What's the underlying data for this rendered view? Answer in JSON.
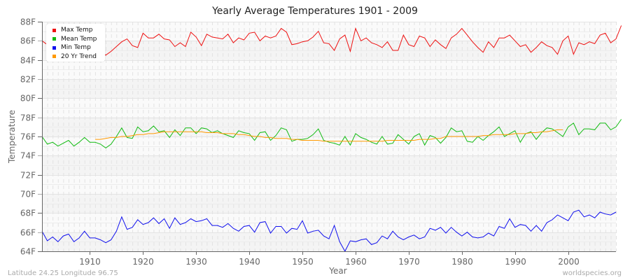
{
  "title": "Yearly Average Temperatures 1901 - 2009",
  "footer": {
    "location": "Latitude 24.25 Longitude 96.75",
    "source": "worldspecies.org"
  },
  "legend": [
    {
      "label": "Max Temp",
      "color": "#ee1111"
    },
    {
      "label": "Mean Temp",
      "color": "#11bb11"
    },
    {
      "label": "Min Temp",
      "color": "#1111ee"
    },
    {
      "label": "20 Yr Trend",
      "color": "#ff9900"
    }
  ],
  "chart_data": {
    "type": "line",
    "title": "Yearly Average Temperatures 1901 - 2009",
    "xlabel": "Year",
    "ylabel": "Temperature",
    "xlim": [
      1901,
      2009
    ],
    "ylim": [
      64,
      88
    ],
    "x_ticks": [
      1910,
      1920,
      1930,
      1940,
      1950,
      1960,
      1970,
      1980,
      1990,
      2000
    ],
    "y_ticks": [
      "64F",
      "66F",
      "68F",
      "70F",
      "72F",
      "74F",
      "76F",
      "78F",
      "80F",
      "82F",
      "84F",
      "86F",
      "88F"
    ],
    "grid": true,
    "legend_position": "top-left",
    "x_start": 1901,
    "series": [
      {
        "name": "Max Temp",
        "color": "#ee1111",
        "values": [
          86.0,
          85.6,
          85.3,
          85.0,
          85.2,
          84.9,
          85.4,
          84.8,
          85.0,
          85.1,
          84.7,
          84.8,
          84.5,
          84.9,
          85.4,
          85.9,
          86.2,
          85.5,
          85.3,
          86.8,
          86.3,
          86.3,
          86.7,
          86.2,
          86.1,
          85.4,
          85.8,
          85.4,
          86.9,
          86.4,
          85.5,
          86.7,
          86.4,
          86.3,
          86.2,
          86.7,
          85.8,
          86.3,
          86.1,
          86.8,
          86.9,
          86.0,
          86.5,
          86.3,
          86.5,
          87.3,
          86.9,
          85.6,
          85.7,
          85.9,
          86.0,
          86.4,
          87.0,
          85.8,
          85.7,
          85.0,
          86.2,
          86.6,
          84.9,
          87.3,
          86.0,
          86.3,
          85.8,
          85.6,
          85.3,
          85.9,
          85.0,
          85.0,
          86.6,
          85.6,
          85.4,
          86.5,
          86.3,
          85.4,
          86.1,
          85.6,
          85.2,
          86.3,
          86.7,
          87.3,
          86.6,
          85.9,
          85.3,
          84.8,
          85.9,
          85.3,
          86.3,
          86.3,
          86.6,
          86.0,
          85.4,
          85.6,
          84.8,
          85.3,
          85.9,
          85.5,
          85.3,
          84.6,
          86.0,
          86.5,
          84.6,
          85.8,
          85.6,
          85.9,
          85.7,
          86.6,
          86.8,
          85.8,
          86.2,
          87.6
        ]
      },
      {
        "name": "Mean Temp",
        "color": "#11bb11",
        "values": [
          76.0,
          75.2,
          75.4,
          75.0,
          75.3,
          75.6,
          75.0,
          75.4,
          75.9,
          75.4,
          75.4,
          75.2,
          74.8,
          75.2,
          76.0,
          76.9,
          75.9,
          75.8,
          77.0,
          76.5,
          76.6,
          77.1,
          76.5,
          76.6,
          75.9,
          76.7,
          76.1,
          76.9,
          76.9,
          76.3,
          76.9,
          76.8,
          76.4,
          76.6,
          76.3,
          76.1,
          75.9,
          76.6,
          76.4,
          76.3,
          75.6,
          76.4,
          76.5,
          75.6,
          76.1,
          76.9,
          76.7,
          75.5,
          75.7,
          75.7,
          75.8,
          76.2,
          76.8,
          75.6,
          75.4,
          75.3,
          75.1,
          76.0,
          75.1,
          76.3,
          75.9,
          75.7,
          75.4,
          75.2,
          76.0,
          75.2,
          75.3,
          76.2,
          75.7,
          75.2,
          76.0,
          76.3,
          75.1,
          76.1,
          75.9,
          75.3,
          75.9,
          76.9,
          76.5,
          76.6,
          75.5,
          75.4,
          76.0,
          75.6,
          76.1,
          76.5,
          77.0,
          76.0,
          76.3,
          76.6,
          75.4,
          76.3,
          76.5,
          75.7,
          76.4,
          76.9,
          76.8,
          76.4,
          76.0,
          77.0,
          77.4,
          76.2,
          76.8,
          76.8,
          76.7,
          77.4,
          77.4,
          76.7,
          77.0,
          77.8
        ]
      },
      {
        "name": "Min Temp",
        "color": "#1111ee",
        "values": [
          66.1,
          65.1,
          65.5,
          65.0,
          65.6,
          65.8,
          65.0,
          65.4,
          66.1,
          65.4,
          65.4,
          65.2,
          64.9,
          65.2,
          66.1,
          67.6,
          66.3,
          66.5,
          67.3,
          66.8,
          67.0,
          67.5,
          66.9,
          67.4,
          66.4,
          67.5,
          66.8,
          67.0,
          67.4,
          67.1,
          67.2,
          67.4,
          66.7,
          66.7,
          66.5,
          66.9,
          66.4,
          66.1,
          66.6,
          66.7,
          66.0,
          67.0,
          67.1,
          65.9,
          66.6,
          66.6,
          65.9,
          66.4,
          66.3,
          67.2,
          65.9,
          66.1,
          66.2,
          65.6,
          65.3,
          66.7,
          65.0,
          64.0,
          65.1,
          65.0,
          65.2,
          65.3,
          64.7,
          64.9,
          65.6,
          65.3,
          66.1,
          65.5,
          65.2,
          65.5,
          65.7,
          65.3,
          65.5,
          66.4,
          66.2,
          66.5,
          65.9,
          66.5,
          66.0,
          65.6,
          66.0,
          65.5,
          65.4,
          65.5,
          65.9,
          65.6,
          66.6,
          66.4,
          67.4,
          66.5,
          66.8,
          66.7,
          66.1,
          66.7,
          66.1,
          67.0,
          67.3,
          67.8,
          67.5,
          67.2,
          68.1,
          68.3,
          67.6,
          67.8,
          67.5,
          68.1,
          67.9,
          67.8,
          68.1
        ]
      },
      {
        "name": "20 Yr Trend",
        "color": "#ff9900",
        "x_start": 1911,
        "values": [
          75.7,
          75.7,
          75.8,
          75.9,
          75.9,
          76.0,
          76.0,
          76.1,
          76.2,
          76.2,
          76.3,
          76.3,
          76.4,
          76.5,
          76.5,
          76.5,
          76.5,
          76.5,
          76.5,
          76.5,
          76.5,
          76.4,
          76.4,
          76.4,
          76.3,
          76.3,
          76.3,
          76.2,
          76.2,
          76.1,
          76.0,
          76.0,
          75.9,
          75.9,
          75.8,
          75.8,
          75.8,
          75.7,
          75.7,
          75.6,
          75.6,
          75.6,
          75.6,
          75.5,
          75.5,
          75.5,
          75.5,
          75.5,
          75.5,
          75.5,
          75.5,
          75.5,
          75.5,
          75.5,
          75.5,
          75.6,
          75.6,
          75.6,
          75.6,
          75.6,
          75.6,
          75.7,
          75.7,
          75.7,
          75.8,
          75.8,
          76.0,
          76.0,
          76.0,
          76.0,
          76.0,
          76.0,
          76.0,
          76.1,
          76.1,
          76.2,
          76.2,
          76.2,
          76.2,
          76.3,
          76.3,
          76.3,
          76.4,
          76.4,
          76.5,
          76.5,
          76.6,
          76.7,
          76.7
        ]
      }
    ]
  }
}
